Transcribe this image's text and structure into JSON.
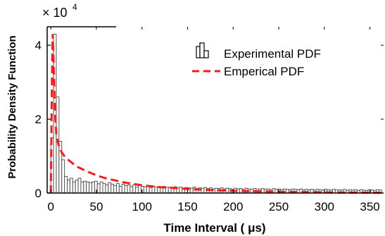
{
  "chart_data": {
    "type": "bar",
    "title": "",
    "xlabel": "Time Interval ( μs)",
    "ylabel": "Probability Density Function",
    "y_multiplier": "× 10",
    "y_multiplier_exp": "4",
    "xlim": [
      -4,
      365
    ],
    "ylim": [
      0,
      4.5
    ],
    "x_ticks": [
      0,
      50,
      100,
      150,
      200,
      250,
      300,
      350
    ],
    "y_ticks": [
      0,
      2,
      4
    ],
    "y_tick_labels": [
      "0",
      "2",
      "4"
    ],
    "grid": false,
    "legend_position": "top-right",
    "series": [
      {
        "name": "Experimental PDF",
        "type": "histogram",
        "color": "#555555",
        "bin_width": 3,
        "x_start": 0,
        "values": [
          1.5,
          4.3,
          2.6,
          1.4,
          0.9,
          0.45,
          0.35,
          0.4,
          0.3,
          0.35,
          0.4,
          0.3,
          0.32,
          0.3,
          0.28,
          0.3,
          0.32,
          0.25,
          0.3,
          0.26,
          0.22,
          0.28,
          0.24,
          0.2,
          0.26,
          0.18,
          0.24,
          0.2,
          0.22,
          0.18,
          0.22,
          0.16,
          0.2,
          0.18,
          0.17,
          0.2,
          0.15,
          0.18,
          0.16,
          0.17,
          0.14,
          0.18,
          0.15,
          0.16,
          0.13,
          0.17,
          0.14,
          0.16,
          0.12,
          0.15,
          0.14,
          0.13,
          0.16,
          0.12,
          0.14,
          0.13,
          0.15,
          0.12,
          0.14,
          0.11,
          0.13,
          0.12,
          0.14,
          0.11,
          0.13,
          0.12,
          0.1,
          0.13,
          0.11,
          0.12,
          0.1,
          0.13,
          0.11,
          0.1,
          0.12,
          0.11,
          0.1,
          0.12,
          0.1,
          0.11,
          0.09,
          0.12,
          0.1,
          0.11,
          0.09,
          0.11,
          0.1,
          0.09,
          0.11,
          0.1,
          0.09,
          0.11,
          0.08,
          0.1,
          0.09,
          0.1,
          0.08,
          0.1,
          0.09,
          0.08,
          0.1,
          0.09,
          0.08,
          0.1,
          0.08,
          0.09,
          0.08,
          0.1,
          0.07,
          0.09,
          0.08,
          0.09,
          0.07,
          0.09,
          0.08,
          0.07,
          0.09,
          0.08,
          0.07,
          0.09,
          0.08,
          0.07
        ]
      },
      {
        "name": "Emperical PDF",
        "type": "line",
        "color": "#ff1a1a",
        "dash": true,
        "x": [
          0,
          1,
          2,
          3,
          4,
          5,
          6,
          8,
          10,
          12,
          15,
          20,
          25,
          30,
          40,
          50,
          60,
          80,
          100,
          120,
          150,
          175,
          200,
          250,
          300,
          350,
          365
        ],
        "y": [
          0,
          2.5,
          4.3,
          3.6,
          2.6,
          2.0,
          1.6,
          1.35,
          1.2,
          1.1,
          1.0,
          0.88,
          0.78,
          0.7,
          0.58,
          0.48,
          0.4,
          0.29,
          0.21,
          0.16,
          0.11,
          0.08,
          0.06,
          0.035,
          0.02,
          0.01,
          0.008
        ]
      }
    ]
  }
}
